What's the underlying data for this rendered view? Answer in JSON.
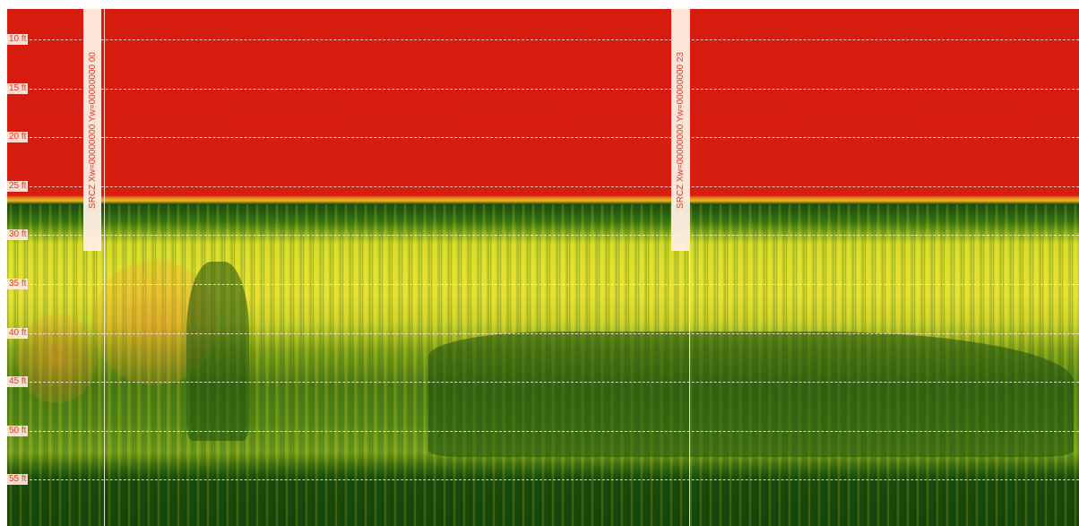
{
  "depth_scale": {
    "unit": "ft",
    "labels": [
      "10 ft",
      "15 ft",
      "20 ft",
      "25 ft",
      "30 ft",
      "35 ft",
      "40 ft",
      "45 ft",
      "50 ft",
      "55 ft"
    ]
  },
  "event_markers": [
    {
      "text": "SRCZ Xw=00000000 Yw=00000000 00"
    },
    {
      "text": "SRCZ Xw=00000000 Yw=00000000 23"
    }
  ],
  "colors": {
    "water_column": "#d61c0f",
    "bottom_strong": "#14420a",
    "bottom_mid": "#e4e230",
    "label_text": "#e03a22"
  }
}
